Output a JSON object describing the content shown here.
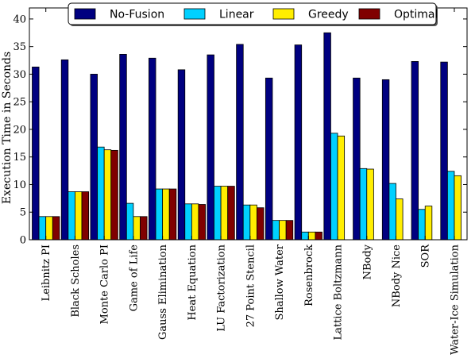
{
  "chart_data": {
    "type": "bar",
    "ylabel": "Execution Time in Seconds",
    "xlabel": "",
    "title": "",
    "ylim": [
      0,
      42
    ],
    "yticks": [
      0,
      5,
      10,
      15,
      20,
      25,
      30,
      35,
      40
    ],
    "legend_position": "top-center",
    "categories": [
      "Leibnitz PI",
      "Black Scholes",
      "Monte Carlo PI",
      "Game of Life",
      "Gauss Elimination",
      "Heat Equation",
      "LU Factorization",
      "27 Point Stencil",
      "Shallow Water",
      "Rosenbrock",
      "Lattice Boltzmann",
      "NBody",
      "NBody Nice",
      "SOR",
      "Water-Ice Simulation"
    ],
    "series": [
      {
        "name": "No-Fusion",
        "color": "#000080",
        "values": [
          31.3,
          32.6,
          30.0,
          33.6,
          32.9,
          30.8,
          33.5,
          35.4,
          29.3,
          35.3,
          37.5,
          29.3,
          29.0,
          32.3,
          32.2
        ]
      },
      {
        "name": "Linear",
        "color": "#00d0ff",
        "values": [
          4.2,
          8.7,
          16.8,
          6.6,
          9.2,
          6.5,
          9.7,
          6.3,
          3.5,
          1.4,
          19.3,
          12.9,
          10.2,
          5.5,
          12.4
        ]
      },
      {
        "name": "Greedy",
        "color": "#ffee00",
        "values": [
          4.2,
          8.7,
          16.3,
          4.2,
          9.2,
          6.5,
          9.7,
          6.3,
          3.5,
          1.4,
          18.8,
          12.8,
          7.4,
          6.1,
          11.6
        ]
      },
      {
        "name": "Optimal",
        "color": "#800000",
        "values": [
          4.2,
          8.7,
          16.2,
          4.2,
          9.2,
          6.4,
          9.7,
          5.8,
          3.5,
          1.4,
          null,
          null,
          null,
          null,
          null
        ]
      }
    ]
  }
}
